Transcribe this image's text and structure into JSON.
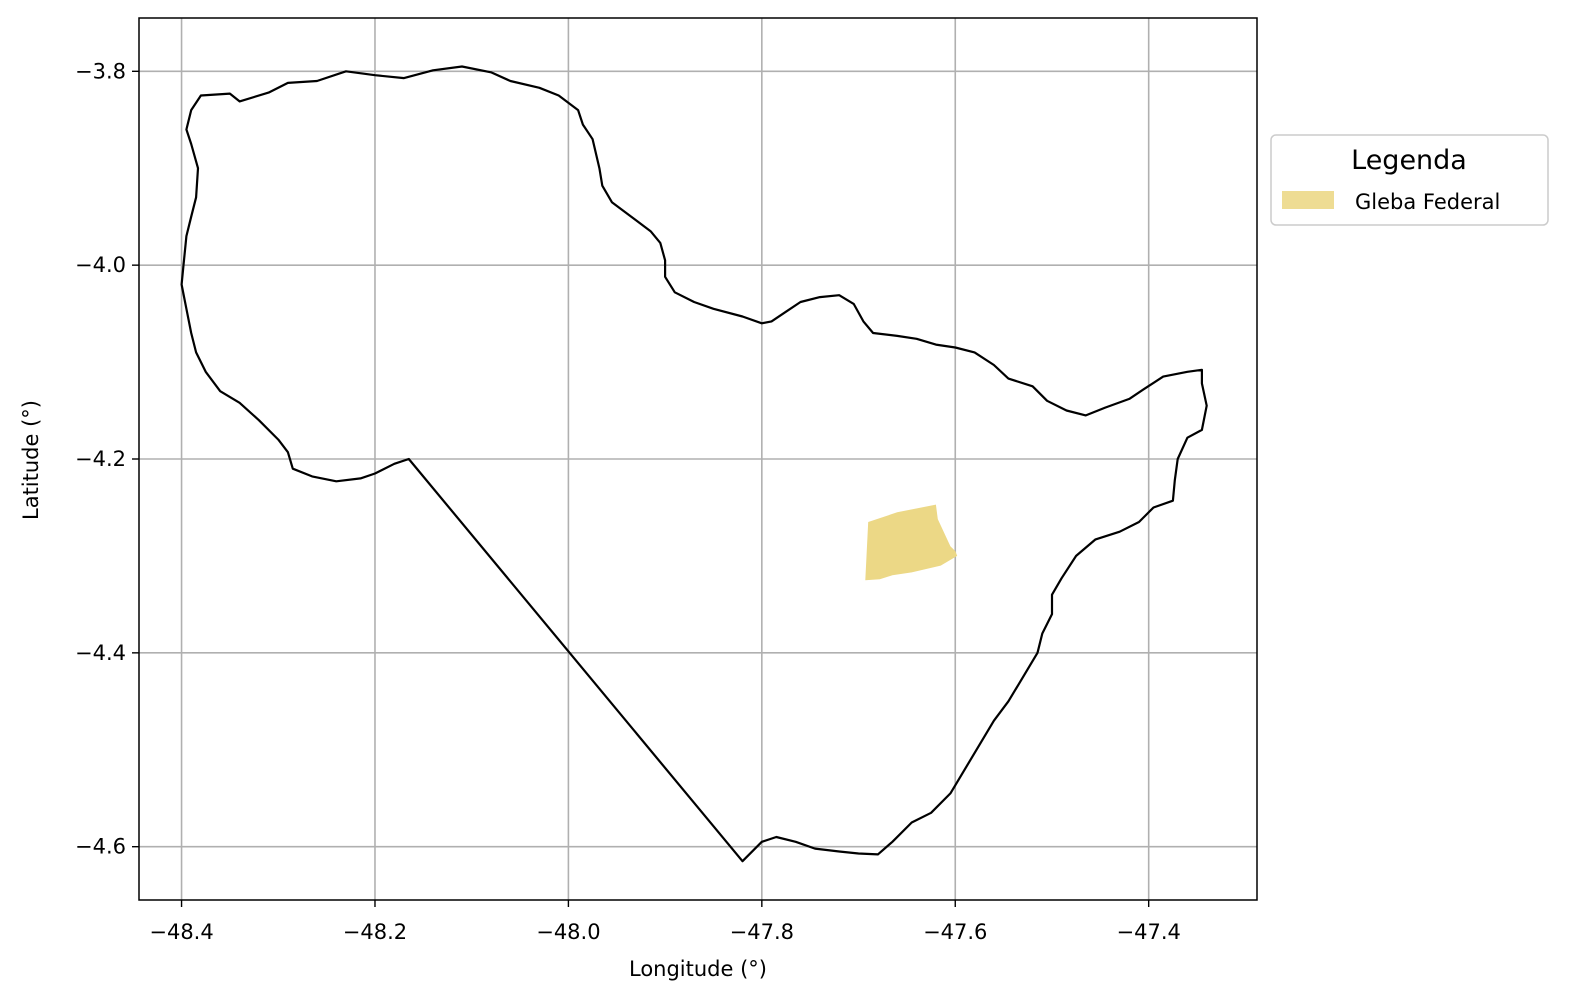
{
  "map": {
    "x_axis_label": "Longitude (°)",
    "y_axis_label": "Latitude (°)",
    "x_ticks": [
      {
        "value": -48.4,
        "label": "−48.4"
      },
      {
        "value": -48.2,
        "label": "−48.2"
      },
      {
        "value": -48.0,
        "label": "−48.0"
      },
      {
        "value": -47.8,
        "label": "−47.8"
      },
      {
        "value": -47.6,
        "label": "−47.6"
      },
      {
        "value": -47.4,
        "label": "−47.4"
      }
    ],
    "y_ticks": [
      {
        "value": -3.8,
        "label": "−3.8"
      },
      {
        "value": -4.0,
        "label": "−4.0"
      },
      {
        "value": -4.2,
        "label": "−4.2"
      },
      {
        "value": -4.4,
        "label": "−4.4"
      },
      {
        "value": -4.6,
        "label": "−4.6"
      }
    ],
    "xlim": [
      -48.444,
      -47.288
    ],
    "ylim": [
      -4.655,
      -3.745
    ],
    "grid": true,
    "legend": {
      "title": "Legenda",
      "placement": "outside-right-top",
      "items": [
        {
          "label": "Gleba Federal",
          "color": "#eedc93"
        }
      ]
    },
    "colors": {
      "boundary": "#000000",
      "gleba_fill": "#ecd886",
      "grid": "#b0b0b0"
    },
    "boundary_outline": [
      [
        -48.39,
        -3.84
      ],
      [
        -48.38,
        -3.825
      ],
      [
        -48.35,
        -3.823
      ],
      [
        -48.34,
        -3.831
      ],
      [
        -48.31,
        -3.822
      ],
      [
        -48.29,
        -3.812
      ],
      [
        -48.26,
        -3.81
      ],
      [
        -48.23,
        -3.8
      ],
      [
        -48.2,
        -3.804
      ],
      [
        -48.17,
        -3.807
      ],
      [
        -48.14,
        -3.799
      ],
      [
        -48.11,
        -3.795
      ],
      [
        -48.08,
        -3.801
      ],
      [
        -48.06,
        -3.81
      ],
      [
        -48.03,
        -3.817
      ],
      [
        -48.01,
        -3.825
      ],
      [
        -47.99,
        -3.84
      ],
      [
        -47.985,
        -3.855
      ],
      [
        -47.975,
        -3.87
      ],
      [
        -47.968,
        -3.9
      ],
      [
        -47.965,
        -3.918
      ],
      [
        -47.955,
        -3.935
      ],
      [
        -47.935,
        -3.95
      ],
      [
        -47.915,
        -3.965
      ],
      [
        -47.905,
        -3.977
      ],
      [
        -47.9,
        -3.995
      ],
      [
        -47.9,
        -4.012
      ],
      [
        -47.89,
        -4.028
      ],
      [
        -47.87,
        -4.038
      ],
      [
        -47.85,
        -4.045
      ],
      [
        -47.82,
        -4.053
      ],
      [
        -47.8,
        -4.06
      ],
      [
        -47.79,
        -4.058
      ],
      [
        -47.775,
        -4.048
      ],
      [
        -47.76,
        -4.038
      ],
      [
        -47.74,
        -4.033
      ],
      [
        -47.72,
        -4.031
      ],
      [
        -47.705,
        -4.04
      ],
      [
        -47.695,
        -4.058
      ],
      [
        -47.685,
        -4.07
      ],
      [
        -47.66,
        -4.073
      ],
      [
        -47.64,
        -4.076
      ],
      [
        -47.62,
        -4.082
      ],
      [
        -47.6,
        -4.085
      ],
      [
        -47.58,
        -4.09
      ],
      [
        -47.56,
        -4.103
      ],
      [
        -47.545,
        -4.117
      ],
      [
        -47.52,
        -4.125
      ],
      [
        -47.505,
        -4.14
      ],
      [
        -47.485,
        -4.15
      ],
      [
        -47.465,
        -4.155
      ],
      [
        -47.445,
        -4.147
      ],
      [
        -47.42,
        -4.138
      ],
      [
        -47.405,
        -4.128
      ],
      [
        -47.385,
        -4.115
      ],
      [
        -47.36,
        -4.11
      ],
      [
        -47.345,
        -4.108
      ],
      [
        -47.345,
        -4.122
      ],
      [
        -47.34,
        -4.145
      ],
      [
        -47.345,
        -4.17
      ],
      [
        -47.36,
        -4.178
      ],
      [
        -47.37,
        -4.2
      ],
      [
        -47.373,
        -4.222
      ],
      [
        -47.375,
        -4.243
      ],
      [
        -47.395,
        -4.25
      ],
      [
        -47.41,
        -4.265
      ],
      [
        -47.43,
        -4.275
      ],
      [
        -47.455,
        -4.283
      ],
      [
        -47.475,
        -4.3
      ],
      [
        -47.49,
        -4.323
      ],
      [
        -47.5,
        -4.34
      ],
      [
        -47.5,
        -4.36
      ],
      [
        -47.51,
        -4.38
      ],
      [
        -47.515,
        -4.4
      ],
      [
        -47.53,
        -4.425
      ],
      [
        -47.545,
        -4.45
      ],
      [
        -47.56,
        -4.47
      ],
      [
        -47.575,
        -4.495
      ],
      [
        -47.59,
        -4.52
      ],
      [
        -47.605,
        -4.545
      ],
      [
        -47.625,
        -4.565
      ],
      [
        -47.645,
        -4.575
      ],
      [
        -47.665,
        -4.595
      ],
      [
        -47.68,
        -4.608
      ],
      [
        -47.7,
        -4.607
      ],
      [
        -47.72,
        -4.605
      ],
      [
        -47.745,
        -4.602
      ],
      [
        -47.765,
        -4.595
      ],
      [
        -47.785,
        -4.59
      ],
      [
        -47.8,
        -4.595
      ],
      [
        -47.82,
        -4.615
      ],
      [
        -48.165,
        -4.2
      ],
      [
        -48.18,
        -4.205
      ],
      [
        -48.2,
        -4.215
      ],
      [
        -48.215,
        -4.22
      ],
      [
        -48.24,
        -4.223
      ],
      [
        -48.265,
        -4.218
      ],
      [
        -48.285,
        -4.21
      ],
      [
        -48.29,
        -4.193
      ],
      [
        -48.3,
        -4.18
      ],
      [
        -48.32,
        -4.16
      ],
      [
        -48.34,
        -4.142
      ],
      [
        -48.36,
        -4.13
      ],
      [
        -48.375,
        -4.11
      ],
      [
        -48.385,
        -4.09
      ],
      [
        -48.39,
        -4.07
      ],
      [
        -48.395,
        -4.045
      ],
      [
        -48.4,
        -4.02
      ],
      [
        -48.398,
        -4.0
      ],
      [
        -48.395,
        -3.97
      ],
      [
        -48.39,
        -3.95
      ],
      [
        -48.385,
        -3.93
      ],
      [
        -48.383,
        -3.9
      ],
      [
        -48.39,
        -3.875
      ],
      [
        -48.395,
        -3.86
      ],
      [
        -48.39,
        -3.84
      ]
    ],
    "gleba_federal_polygon": [
      [
        -47.69,
        -4.265
      ],
      [
        -47.66,
        -4.255
      ],
      [
        -47.62,
        -4.247
      ],
      [
        -47.618,
        -4.262
      ],
      [
        -47.605,
        -4.29
      ],
      [
        -47.6,
        -4.295
      ],
      [
        -47.598,
        -4.3
      ],
      [
        -47.615,
        -4.31
      ],
      [
        -47.645,
        -4.317
      ],
      [
        -47.665,
        -4.32
      ],
      [
        -47.678,
        -4.324
      ],
      [
        -47.693,
        -4.325
      ],
      [
        -47.69,
        -4.265
      ]
    ]
  }
}
